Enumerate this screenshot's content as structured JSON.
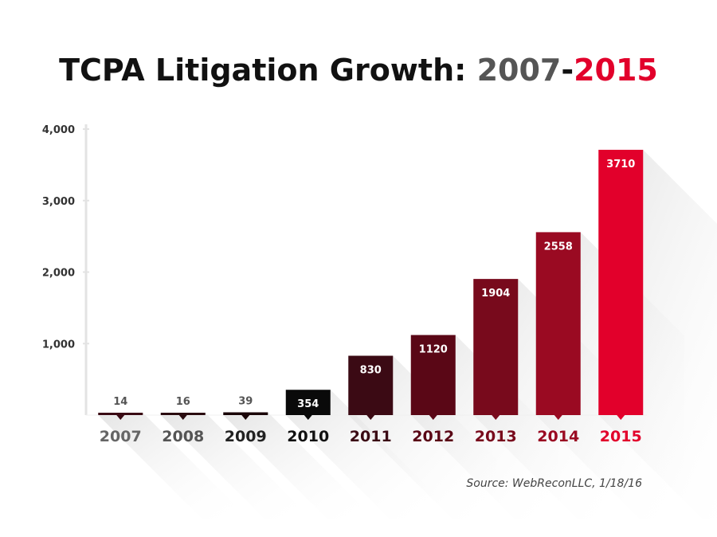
{
  "title": {
    "text": "TCPA Litigation Growth: ",
    "year_start": "2007",
    "dash": "-",
    "year_end": "2015",
    "colors": {
      "main": "#111111",
      "year_start": "#555555",
      "year_end": "#e2002b"
    }
  },
  "source": "Source: WebReconLLC, 1/18/16",
  "chart_data": {
    "type": "bar",
    "title": "TCPA Litigation Growth: 2007-2015",
    "xlabel": "",
    "ylabel": "",
    "ylim": [
      0,
      4000
    ],
    "yticks": [
      1000,
      2000,
      3000,
      4000
    ],
    "ytick_labels": [
      "1,000",
      "2,000",
      "3,000",
      "4,000"
    ],
    "grid": false,
    "categories": [
      "2007",
      "2008",
      "2009",
      "2010",
      "2011",
      "2012",
      "2013",
      "2014",
      "2015"
    ],
    "values": [
      14,
      16,
      39,
      354,
      830,
      1120,
      1904,
      2558,
      3710
    ],
    "value_labels": [
      "14",
      "16",
      "39",
      "354",
      "830",
      "1120",
      "1904",
      "2558",
      "3710"
    ],
    "bar_colors": [
      "#3a0a14",
      "#2a0c10",
      "#1a0608",
      "#0a0a0a",
      "#3b0a14",
      "#5a0716",
      "#780a1c",
      "#9a0a22",
      "#e2002b"
    ],
    "year_label_colors": [
      "#666666",
      "#555555",
      "#222222",
      "#111111",
      "#3b0a14",
      "#5a0716",
      "#780a1c",
      "#9a0a22",
      "#e2002b"
    ]
  }
}
